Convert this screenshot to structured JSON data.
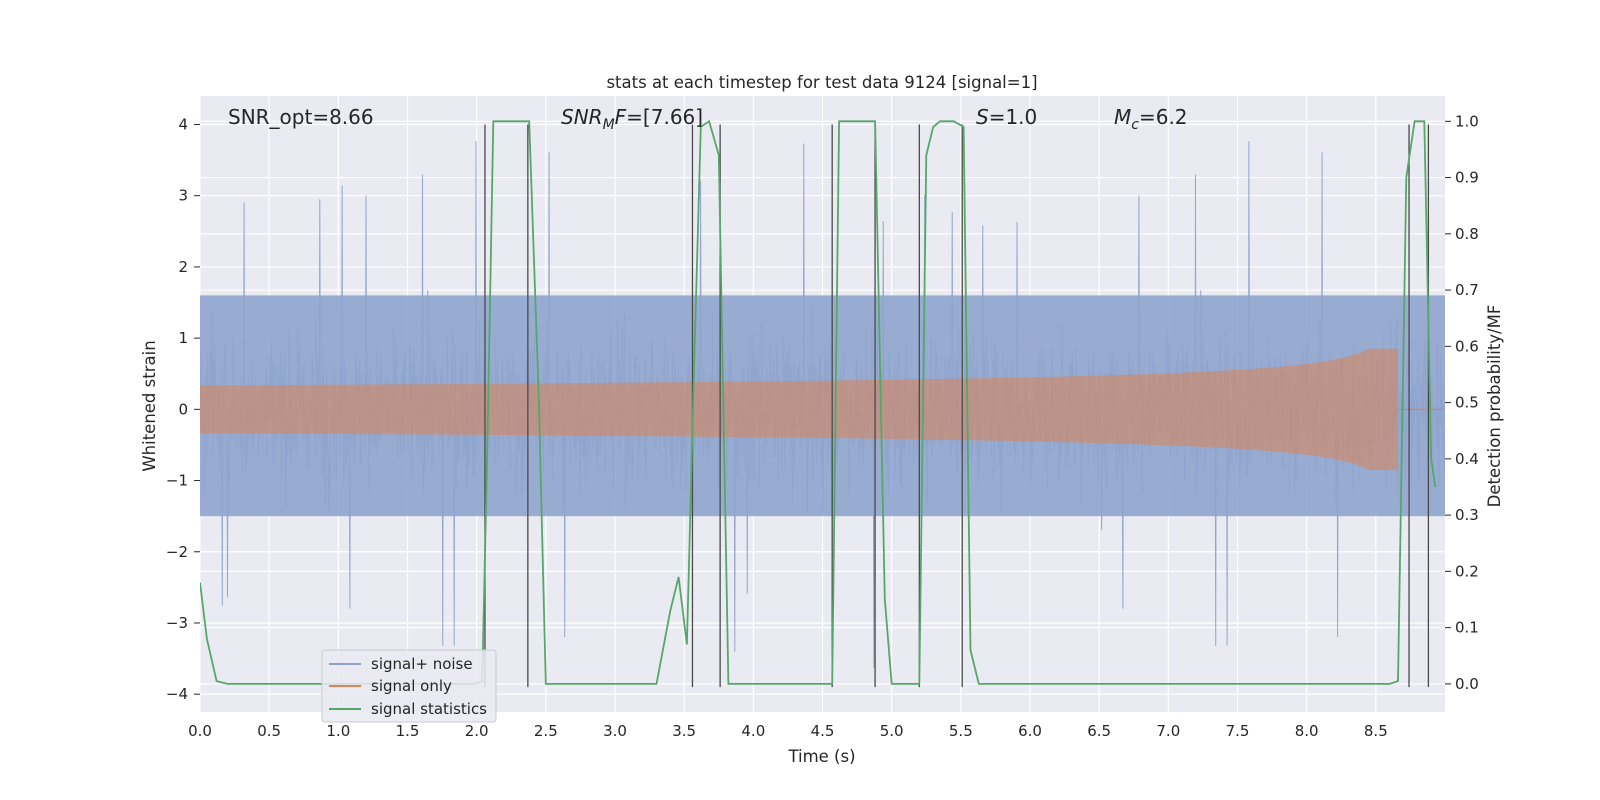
{
  "chart_data": {
    "type": "line",
    "title": "stats at each timestep for test data 9124 [signal=1]",
    "xlabel": "Time (s)",
    "ylabel": "Whitened strain",
    "ylabel_right": "Detection probability/MF",
    "xlim": [
      0.0,
      9.0
    ],
    "ylim": [
      -4.25,
      4.4
    ],
    "ylim_right": [
      -0.05,
      1.045
    ],
    "x_ticks": [
      "0.0",
      "0.5",
      "1.0",
      "1.5",
      "2.0",
      "2.5",
      "3.0",
      "3.5",
      "4.0",
      "4.5",
      "5.0",
      "5.5",
      "6.0",
      "6.5",
      "7.0",
      "7.5",
      "8.0",
      "8.5"
    ],
    "y_ticks": [
      "4",
      "3",
      "2",
      "1",
      "0",
      "−1",
      "−2",
      "−3",
      "−4"
    ],
    "y_ticks_right": [
      "1.0",
      "0.9",
      "0.8",
      "0.7",
      "0.6",
      "0.5",
      "0.4",
      "0.3",
      "0.2",
      "0.1",
      "0.0"
    ],
    "grid": true,
    "legend_position": "lower-left",
    "annotations": {
      "snr_opt": "SNR_opt=8.66",
      "snr_mf_label": "SNR",
      "snr_mf_sub": "M",
      "snr_mf_rest": "F",
      "snr_mf_value": "=[7.66]",
      "s_label": "S",
      "s_value": "=1.0",
      "mc_label": "M",
      "mc_sub": "c",
      "mc_value": "=6.2"
    },
    "series": [
      {
        "name": "signal+ noise",
        "color": "#8fa4cd",
        "kind": "noise",
        "band_low": -1.5,
        "band_high": 1.6,
        "peak_max": 4.0,
        "peak_min": -3.9
      },
      {
        "name": "signal only",
        "color": "#dd8452",
        "kind": "chirp",
        "merger_time": 8.66,
        "max_amplitude": 0.85
      },
      {
        "name": "signal statistics",
        "color": "#55a868",
        "kind": "probability",
        "x": [
          0.0,
          0.05,
          0.12,
          0.2,
          0.5,
          1.0,
          1.5,
          1.98,
          2.04,
          2.08,
          2.12,
          2.2,
          2.3,
          2.38,
          2.45,
          2.5,
          3.0,
          3.3,
          3.4,
          3.46,
          3.52,
          3.57,
          3.62,
          3.68,
          3.75,
          3.82,
          3.9,
          4.0,
          4.5,
          4.57,
          4.62,
          4.7,
          4.8,
          4.88,
          4.95,
          5.0,
          5.2,
          5.25,
          5.3,
          5.35,
          5.45,
          5.52,
          5.57,
          5.63,
          5.7,
          8.0,
          8.6,
          8.66,
          8.72,
          8.78,
          8.85,
          8.9,
          8.93
        ],
        "y": [
          0.18,
          0.08,
          0.005,
          0.0,
          0.0,
          0.0,
          0.0,
          0.0,
          0.005,
          0.45,
          1.0,
          1.0,
          1.0,
          1.0,
          0.5,
          0.0,
          0.0,
          0.0,
          0.13,
          0.19,
          0.07,
          0.55,
          0.99,
          1.0,
          0.94,
          0.0,
          0.0,
          0.0,
          0.0,
          0.0,
          1.0,
          1.0,
          1.0,
          1.0,
          0.15,
          0.0,
          0.0,
          0.94,
          0.99,
          1.0,
          1.0,
          0.99,
          0.06,
          0.0,
          0.0,
          0.0,
          0.0,
          0.005,
          0.9,
          1.0,
          1.0,
          0.4,
          0.35
        ]
      }
    ],
    "vertical_lines_x": [
      2.06,
      2.37,
      3.56,
      3.76,
      4.57,
      4.88,
      5.2,
      5.51,
      8.74,
      8.88
    ],
    "vertical_lines_range": [
      -3.9,
      4.0
    ]
  }
}
